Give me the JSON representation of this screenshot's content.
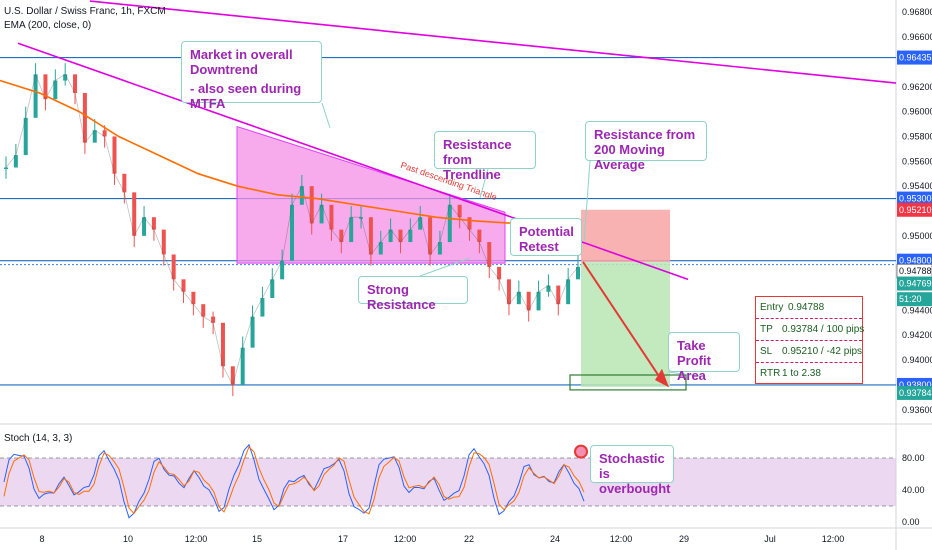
{
  "header": {
    "title": "U.S. Dollar / Swiss Franc, 1h, FXCM",
    "indicator": "EMA (200, close, 0)",
    "stoch_label": "Stoch (14, 3, 3)"
  },
  "annotations": {
    "downtrend": "Market in overall Downtrend",
    "mtfa": "- also seen during MTFA",
    "trendline_res": "Resistance from Trendline",
    "ma_res": "Resistance from 200 Moving Average",
    "retest": "Potential Retest",
    "strong_res": "Strong Resistance",
    "take_profit": "Take Profit Area",
    "triangle": "Past descending Triangle",
    "stoch_note": "Stochastic is overbought"
  },
  "trade_table": {
    "rows": [
      {
        "k": "Entry",
        "v": "0.94788"
      },
      {
        "k": "TP",
        "v": "0.93784 / 100 pips"
      },
      {
        "k": "SL",
        "v": "0.95210 / -42 pips"
      },
      {
        "k": "RTR",
        "v": "1 to 2.38"
      }
    ]
  },
  "chart_data": {
    "type": "line",
    "price_axis": {
      "ticks": [
        "0.96800",
        "0.96600",
        "0.96200",
        "0.96000",
        "0.95800",
        "0.95600",
        "0.95400",
        "0.95000",
        "0.94600",
        "0.94400",
        "0.94200",
        "0.94000",
        "0.93600"
      ],
      "tick_values": [
        0.968,
        0.966,
        0.962,
        0.96,
        0.958,
        0.956,
        0.954,
        0.95,
        0.946,
        0.944,
        0.942,
        0.94,
        0.936
      ],
      "ylim": [
        0.9355,
        0.9685
      ]
    },
    "price_labels": [
      {
        "text": "0.96435",
        "value": 0.96435,
        "color": "#2962ff"
      },
      {
        "text": "0.95300",
        "value": 0.953,
        "color": "#2962ff"
      },
      {
        "text": "0.95210",
        "value": 0.9521,
        "color": "#f23645"
      },
      {
        "text": "0.94800",
        "value": 0.948,
        "color": "#2962ff"
      },
      {
        "text": "0.94788",
        "value": 0.94788,
        "color": "#ffffff"
      },
      {
        "text": "0.94769",
        "value": 0.94769,
        "color": "#26a69a"
      },
      {
        "text": "51:20",
        "value": 0.9462,
        "color": "#26a69a"
      },
      {
        "text": "0.93800",
        "value": 0.938,
        "color": "#2962ff"
      },
      {
        "text": "0.93784",
        "value": 0.93784,
        "color": "#26a69a"
      }
    ],
    "horizontal_levels": [
      0.96435,
      0.953,
      0.948,
      0.938
    ],
    "time_axis": [
      "8",
      "10",
      "12:00",
      "15",
      "17",
      "12:00",
      "22",
      "24",
      "12:00",
      "29",
      "Jul",
      "12:00"
    ],
    "series": [
      {
        "name": "USDCHF",
        "values": [
          0.9555,
          0.9565,
          0.9595,
          0.963,
          0.961,
          0.9625,
          0.963,
          0.9615,
          0.9575,
          0.9585,
          0.958,
          0.955,
          0.9535,
          0.95,
          0.9515,
          0.9505,
          0.9485,
          0.9465,
          0.9455,
          0.9445,
          0.9435,
          0.943,
          0.9395,
          0.938,
          0.941,
          0.9435,
          0.945,
          0.9465,
          0.948,
          0.9525,
          0.954,
          0.951,
          0.9525,
          0.9505,
          0.9495,
          0.9515,
          0.9515,
          0.9485,
          0.9495,
          0.9505,
          0.9495,
          0.9505,
          0.9515,
          0.9485,
          0.9495,
          0.9525,
          0.9515,
          0.9505,
          0.9495,
          0.9475,
          0.9465,
          0.9445,
          0.9455,
          0.944,
          0.9455,
          0.946,
          0.9445,
          0.9465,
          0.9475
        ]
      },
      {
        "name": "EMA (200, close, 0)",
        "values": [
          0.9625,
          0.9615,
          0.96,
          0.958,
          0.9565,
          0.955,
          0.954,
          0.9533,
          0.953,
          0.9525,
          0.952,
          0.9515,
          0.9512,
          0.951
        ]
      }
    ],
    "stochastic": {
      "ticks": [
        "80.00",
        "40.00",
        "0.00"
      ],
      "tick_values": [
        80,
        40,
        0
      ],
      "levels": [
        80,
        20
      ],
      "ylim": [
        -5,
        105
      ]
    }
  }
}
